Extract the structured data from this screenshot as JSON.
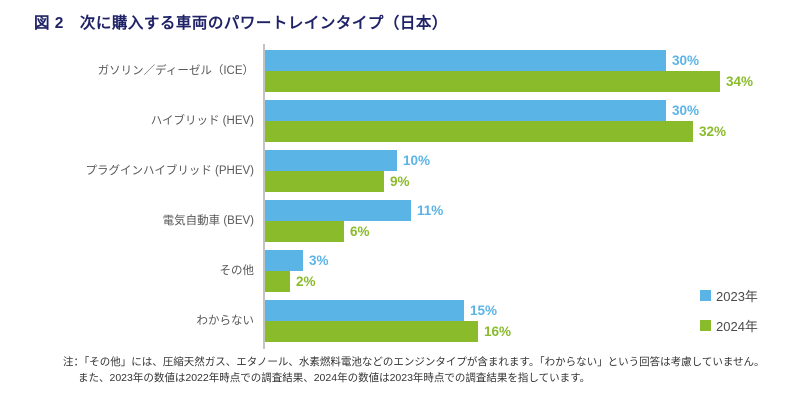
{
  "title": "図 2　次に購入する車両のパワートレインタイプ（日本）",
  "chart_data": {
    "type": "bar",
    "orientation": "horizontal",
    "title": "図 2　次に購入する車両のパワートレインタイプ（日本）",
    "categories": [
      "ガソリン／ディーゼル（ICE）",
      "ハイブリッド (HEV)",
      "プラグインハイブリッド (PHEV)",
      "電気自動車 (BEV)",
      "その他",
      "わからない"
    ],
    "series": [
      {
        "name": "2023年",
        "color": "#5BB4E6",
        "values": [
          30,
          30,
          10,
          11,
          3,
          15
        ]
      },
      {
        "name": "2024年",
        "color": "#89BB2B",
        "values": [
          34,
          32,
          9,
          6,
          2,
          16
        ]
      }
    ],
    "value_suffix": "%",
    "xlim": [
      0,
      35
    ],
    "grid": false,
    "legend_position": "right-bottom"
  },
  "notes": {
    "line1": "注：「その他」には、圧縮天然ガス、エタノール、水素燃料電池などのエンジンタイプが含まれます。「わからない」という回答は考慮していません。",
    "line2": "また、2023年の数値は2022年時点での調査結果、2024年の数値は2023年時点での調査結果を指しています。"
  },
  "colors": {
    "title": "#1F2266",
    "category_label": "#595959",
    "legend_text": "#4A4A4A",
    "note_text": "#333333",
    "axis_line": "#C3C3C3",
    "background": "#FFFFFF"
  }
}
